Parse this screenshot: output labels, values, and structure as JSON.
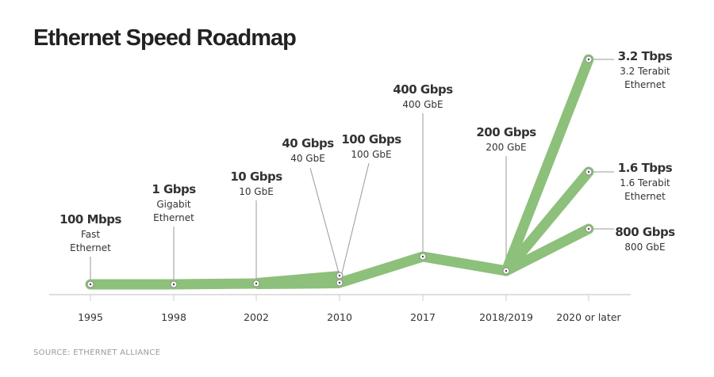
{
  "chart_data": {
    "type": "line",
    "title": "Ethernet Speed Roadmap",
    "source": "SOURCE: ETHERNET ALLIANCE",
    "categories": [
      "1995",
      "1998",
      "2002",
      "2010",
      "2017",
      "2018/2019",
      "2020 or later"
    ],
    "grid": false,
    "band_color": "#8dc07a",
    "points": [
      {
        "category": "1995",
        "speed_gbps": 0.1,
        "label": "100 Mbps",
        "sub": [
          "Fast",
          "Ethernet"
        ]
      },
      {
        "category": "1998",
        "speed_gbps": 1,
        "label": "1 Gbps",
        "sub": [
          "Gigabit",
          "Ethernet"
        ]
      },
      {
        "category": "2002",
        "speed_gbps": 10,
        "label": "10 Gbps",
        "sub": [
          "10 GbE"
        ]
      },
      {
        "category": "2010",
        "speed_gbps": 40,
        "label": "40 Gbps",
        "sub": [
          "40 GbE"
        ]
      },
      {
        "category": "2010",
        "speed_gbps": 100,
        "label": "100 Gbps",
        "sub": [
          "100 GbE"
        ]
      },
      {
        "category": "2017",
        "speed_gbps": 400,
        "label": "400 Gbps",
        "sub": [
          "400 GbE"
        ]
      },
      {
        "category": "2018/2019",
        "speed_gbps": 200,
        "label": "200 Gbps",
        "sub": [
          "200 GbE"
        ]
      },
      {
        "category": "2020 or later",
        "speed_gbps": 3200,
        "label": "3.2 Tbps",
        "sub": [
          "3.2 Terabit",
          "Ethernet"
        ]
      },
      {
        "category": "2020 or later",
        "speed_gbps": 1600,
        "label": "1.6 Tbps",
        "sub": [
          "1.6 Terabit",
          "Ethernet"
        ]
      },
      {
        "category": "2020 or later",
        "speed_gbps": 800,
        "label": "800 Gbps",
        "sub": [
          "800 GbE"
        ]
      }
    ]
  }
}
